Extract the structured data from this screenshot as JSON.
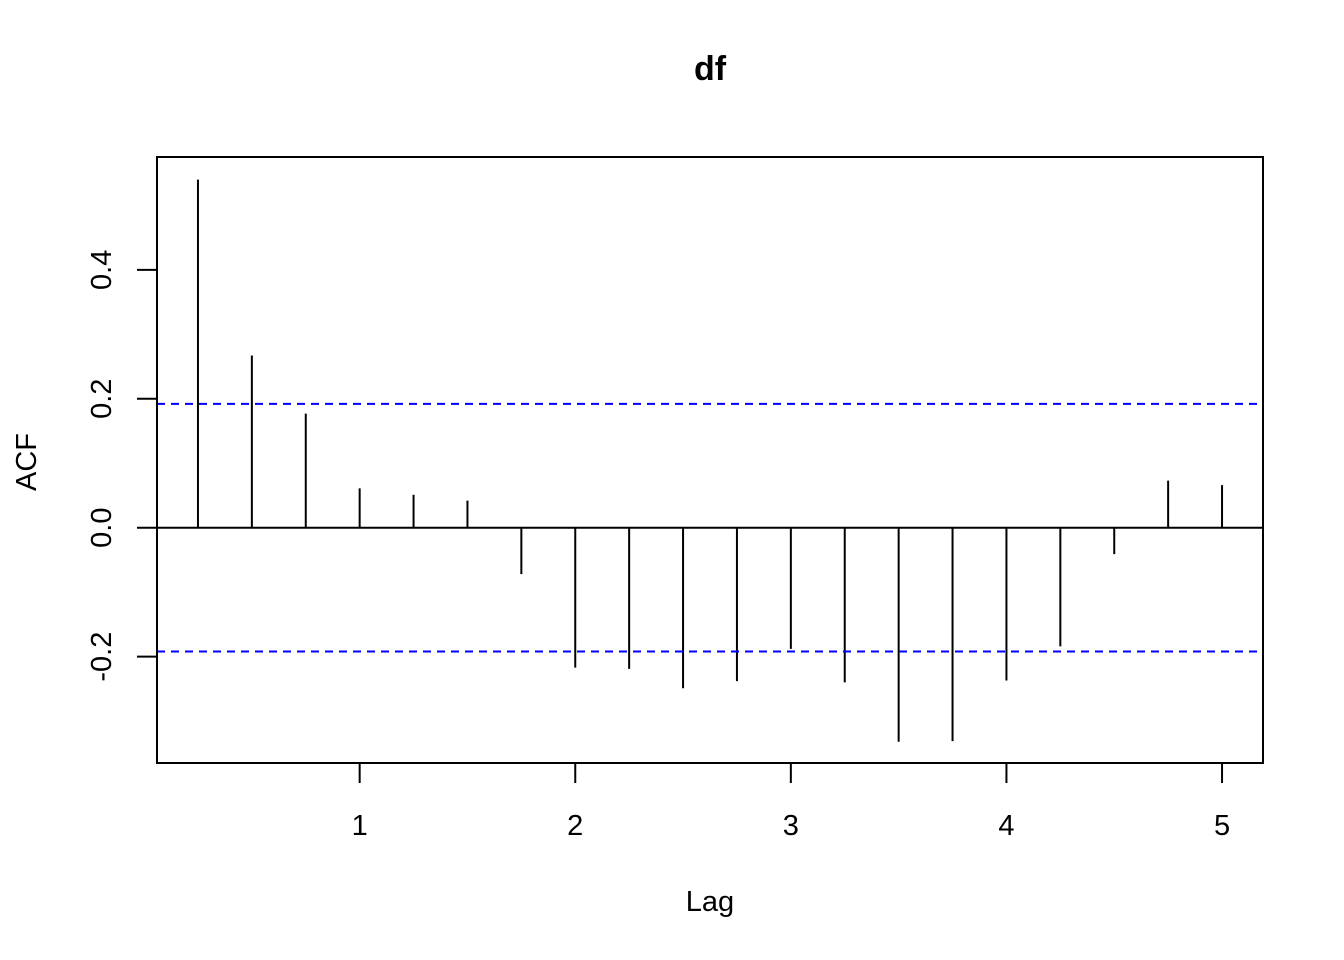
{
  "chart_data": {
    "type": "bar",
    "title": "df",
    "xlabel": "Lag",
    "ylabel": "ACF",
    "x_ticks": [
      1,
      2,
      3,
      4,
      5
    ],
    "x_tick_labels": [
      "1",
      "2",
      "3",
      "4",
      "5"
    ],
    "y_ticks": [
      -0.2,
      0.0,
      0.2,
      0.4
    ],
    "y_tick_labels": [
      "-0.2",
      "0.0",
      "0.2",
      "0.4"
    ],
    "xlim": [
      0.06,
      5.19
    ],
    "ylim": [
      -0.365,
      0.575
    ],
    "lags": [
      0.25,
      0.5,
      0.75,
      1.0,
      1.25,
      1.5,
      1.75,
      2.0,
      2.25,
      2.5,
      2.75,
      3.0,
      3.25,
      3.5,
      3.75,
      4.0,
      4.25,
      4.5,
      4.75,
      5.0
    ],
    "acf": [
      0.54,
      0.267,
      0.177,
      0.061,
      0.051,
      0.042,
      -0.072,
      -0.217,
      -0.219,
      -0.249,
      -0.238,
      -0.188,
      -0.24,
      -0.332,
      -0.331,
      -0.237,
      -0.184,
      -0.041,
      0.073,
      0.066
    ],
    "ci_bounds": [
      0.192,
      -0.192
    ],
    "ci_color": "#0000ff",
    "bar_color": "#000000",
    "grid": false
  }
}
